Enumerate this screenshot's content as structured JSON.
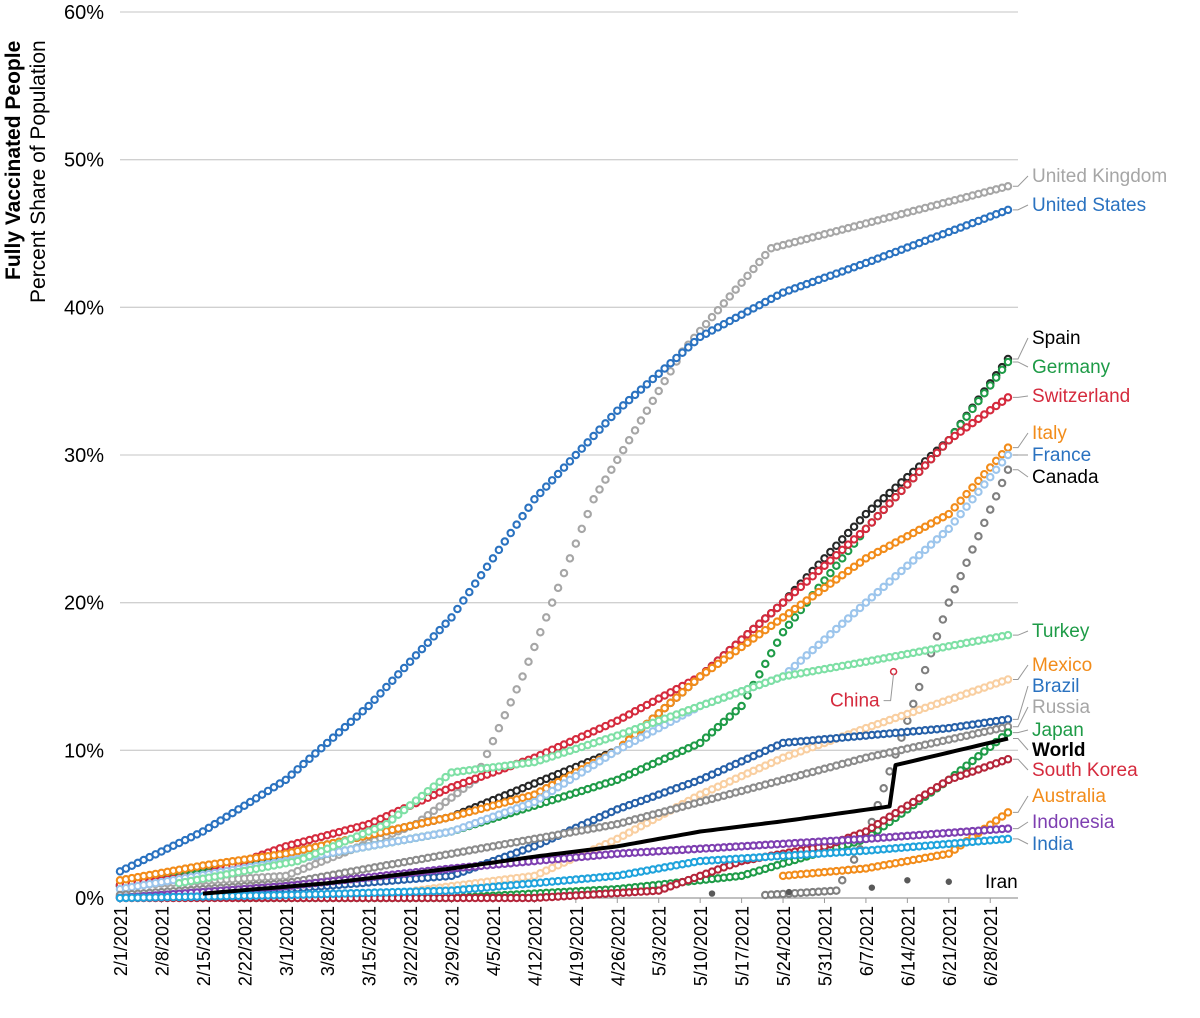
{
  "chart_data": {
    "type": "scatter",
    "title": "Fully Vaccinated People",
    "ylabel": "Percent Share of Population",
    "xlabel": "",
    "ylim": [
      0,
      60
    ],
    "yticks": [
      0,
      10,
      20,
      30,
      40,
      50,
      60
    ],
    "ytick_labels": [
      "0%",
      "10%",
      "20%",
      "30%",
      "40%",
      "50%",
      "60%"
    ],
    "x_start": "2021-02-01",
    "x_end": "2021-06-30",
    "num_days": 150,
    "xtick_labels": [
      "2/1/2021",
      "2/8/2021",
      "2/15/2021",
      "2/22/2021",
      "3/1/2021",
      "3/8/2021",
      "3/15/2021",
      "3/22/2021",
      "3/29/2021",
      "4/5/2021",
      "4/12/2021",
      "4/19/2021",
      "4/26/2021",
      "5/3/2021",
      "5/10/2021",
      "5/17/2021",
      "5/24/2021",
      "5/31/2021",
      "6/7/2021",
      "6/14/2021",
      "6/21/2021",
      "6/28/2021"
    ],
    "grid": true,
    "series": [
      {
        "name": "United Kingdom",
        "color": "#a6a6a6",
        "label_color": "#a6a6a6",
        "start_day": 0,
        "keypoints": [
          [
            0,
            0.8
          ],
          [
            28,
            1.5
          ],
          [
            50,
            5
          ],
          [
            60,
            8
          ],
          [
            68,
            15
          ],
          [
            80,
            27
          ],
          [
            95,
            37
          ],
          [
            110,
            44
          ],
          [
            150,
            48.2
          ]
        ]
      },
      {
        "name": "United States",
        "color": "#2a72c0",
        "label_color": "#2a72c0",
        "start_day": 0,
        "keypoints": [
          [
            0,
            1.8
          ],
          [
            14,
            4.5
          ],
          [
            28,
            8
          ],
          [
            42,
            13
          ],
          [
            56,
            19
          ],
          [
            70,
            27
          ],
          [
            84,
            33
          ],
          [
            98,
            38
          ],
          [
            112,
            41
          ],
          [
            126,
            43
          ],
          [
            150,
            46.6
          ]
        ]
      },
      {
        "name": "Spain",
        "color": "#262626",
        "label_color": "#000000",
        "start_day": 0,
        "keypoints": [
          [
            0,
            0.8
          ],
          [
            28,
            3
          ],
          [
            56,
            5.5
          ],
          [
            84,
            10
          ],
          [
            98,
            15
          ],
          [
            112,
            20
          ],
          [
            126,
            26
          ],
          [
            140,
            31
          ],
          [
            150,
            36.5
          ]
        ]
      },
      {
        "name": "Germany",
        "color": "#1e9b47",
        "label_color": "#1e9b47",
        "start_day": 0,
        "keypoints": [
          [
            0,
            0.9
          ],
          [
            28,
            2.5
          ],
          [
            56,
            4.5
          ],
          [
            84,
            8
          ],
          [
            98,
            10.5
          ],
          [
            105,
            13
          ],
          [
            112,
            18
          ],
          [
            126,
            25
          ],
          [
            140,
            31
          ],
          [
            150,
            36.3
          ]
        ]
      },
      {
        "name": "Switzerland",
        "color": "#d52a3d",
        "label_color": "#d52a3d",
        "start_day": 0,
        "keypoints": [
          [
            0,
            0.9
          ],
          [
            14,
            1.5
          ],
          [
            28,
            3.5
          ],
          [
            42,
            5
          ],
          [
            56,
            7.5
          ],
          [
            70,
            9.5
          ],
          [
            84,
            12
          ],
          [
            98,
            15
          ],
          [
            112,
            20
          ],
          [
            126,
            25
          ],
          [
            140,
            31
          ],
          [
            150,
            33.9
          ]
        ]
      },
      {
        "name": "Italy",
        "color": "#f28c1a",
        "label_color": "#f28c1a",
        "start_day": 0,
        "keypoints": [
          [
            0,
            1.2
          ],
          [
            14,
            2.2
          ],
          [
            28,
            3
          ],
          [
            56,
            5.5
          ],
          [
            70,
            7
          ],
          [
            84,
            10
          ],
          [
            98,
            15
          ],
          [
            112,
            19
          ],
          [
            126,
            23
          ],
          [
            140,
            26
          ],
          [
            150,
            30.5
          ]
        ]
      },
      {
        "name": "France",
        "color": "#9cc5ec",
        "label_color": "#2a72c0",
        "start_day": 0,
        "keypoints": [
          [
            0,
            0.6
          ],
          [
            28,
            2.5
          ],
          [
            56,
            4.5
          ],
          [
            70,
            6.5
          ],
          [
            84,
            10
          ],
          [
            98,
            13
          ],
          [
            112,
            15
          ],
          [
            126,
            20
          ],
          [
            140,
            25
          ],
          [
            150,
            30
          ]
        ]
      },
      {
        "name": "Canada",
        "color": "#7f7f7f",
        "label_color": "#000000",
        "start_day": 109,
        "keypoints": [
          [
            109,
            0.2
          ],
          [
            121,
            0.5
          ],
          [
            126,
            4
          ],
          [
            133,
            12
          ],
          [
            140,
            20
          ],
          [
            150,
            29
          ]
        ]
      },
      {
        "name": "Turkey",
        "color": "#7ee0a5",
        "label_color": "#1e9b47",
        "start_day": 10,
        "keypoints": [
          [
            10,
            1
          ],
          [
            30,
            2.5
          ],
          [
            45,
            5
          ],
          [
            56,
            8.5
          ],
          [
            70,
            9.2
          ],
          [
            84,
            11
          ],
          [
            98,
            13
          ],
          [
            112,
            15
          ],
          [
            126,
            16
          ],
          [
            150,
            17.8
          ]
        ]
      },
      {
        "name": "Mexico",
        "color": "#f9cfa1",
        "label_color": "#f28c1a",
        "start_day": 50,
        "keypoints": [
          [
            50,
            0.5
          ],
          [
            70,
            1.5
          ],
          [
            84,
            4
          ],
          [
            98,
            7
          ],
          [
            112,
            9.5
          ],
          [
            126,
            11.5
          ],
          [
            150,
            14.8
          ]
        ]
      },
      {
        "name": "Brazil",
        "color": "#2660a8",
        "label_color": "#2a72c0",
        "start_day": 0,
        "keypoints": [
          [
            0,
            0.1
          ],
          [
            28,
            0.6
          ],
          [
            56,
            1.5
          ],
          [
            70,
            3.5
          ],
          [
            84,
            6
          ],
          [
            98,
            8
          ],
          [
            112,
            10.5
          ],
          [
            140,
            11.5
          ],
          [
            150,
            12.1
          ]
        ]
      },
      {
        "name": "Russia",
        "color": "#8c8c8c",
        "label_color": "#a6a6a6",
        "start_day": 0,
        "keypoints": [
          [
            0,
            0.2
          ],
          [
            28,
            1
          ],
          [
            56,
            3
          ],
          [
            70,
            4
          ],
          [
            84,
            5
          ],
          [
            98,
            6.5
          ],
          [
            112,
            8
          ],
          [
            126,
            9.5
          ],
          [
            150,
            11.6
          ]
        ]
      },
      {
        "name": "Japan",
        "color": "#1e9b47",
        "label_color": "#1e9b47",
        "start_day": 20,
        "keypoints": [
          [
            20,
            0
          ],
          [
            56,
            0
          ],
          [
            84,
            0.6
          ],
          [
            105,
            1.5
          ],
          [
            126,
            4
          ],
          [
            140,
            8
          ],
          [
            150,
            11.2
          ]
        ]
      },
      {
        "name": "South Korea",
        "color": "#b5253a",
        "label_color": "#d52a3d",
        "start_day": 0,
        "keypoints": [
          [
            0,
            0
          ],
          [
            70,
            0
          ],
          [
            91,
            0.5
          ],
          [
            105,
            2.5
          ],
          [
            119,
            3.5
          ],
          [
            126,
            4.5
          ],
          [
            140,
            8
          ],
          [
            150,
            9.4
          ]
        ]
      },
      {
        "name": "Australia",
        "color": "#f28c1a",
        "label_color": "#f28c1a",
        "start_day": 112,
        "keypoints": [
          [
            112,
            1.5
          ],
          [
            126,
            2
          ],
          [
            140,
            3
          ],
          [
            150,
            5.8
          ]
        ]
      },
      {
        "name": "Indonesia",
        "color": "#7e3fb1",
        "label_color": "#7e3fb1",
        "start_day": 0,
        "keypoints": [
          [
            0,
            0
          ],
          [
            28,
            0.8
          ],
          [
            56,
            2
          ],
          [
            84,
            3
          ],
          [
            105,
            3.5
          ],
          [
            126,
            4
          ],
          [
            150,
            4.7
          ]
        ]
      },
      {
        "name": "India",
        "color": "#1fa3dc",
        "label_color": "#2a72c0",
        "start_day": 0,
        "keypoints": [
          [
            0,
            0
          ],
          [
            28,
            0.2
          ],
          [
            56,
            0.5
          ],
          [
            84,
            1.5
          ],
          [
            98,
            2.5
          ],
          [
            126,
            3.2
          ],
          [
            150,
            4
          ]
        ]
      },
      {
        "name": "Iran",
        "color": "#595959",
        "label_color": "#000000",
        "start_day": 0,
        "sparse": true,
        "points": [
          [
            100,
            0.3
          ],
          [
            113,
            0.4
          ],
          [
            127,
            0.7
          ],
          [
            133,
            1.2
          ],
          [
            140,
            1.1
          ]
        ]
      },
      {
        "name": "World",
        "color": "#000000",
        "label_color": "#000000",
        "line": true,
        "start_day": 14,
        "keypoints": [
          [
            14,
            0.3
          ],
          [
            35,
            1
          ],
          [
            56,
            2
          ],
          [
            70,
            2.8
          ],
          [
            84,
            3.5
          ],
          [
            98,
            4.5
          ],
          [
            112,
            5.2
          ],
          [
            130,
            6.2
          ],
          [
            131,
            9
          ],
          [
            150,
            10.8
          ]
        ]
      }
    ],
    "annotations": [
      {
        "text": "China",
        "color": "#d52a3d",
        "day": 130,
        "value": 15.4
      }
    ]
  }
}
